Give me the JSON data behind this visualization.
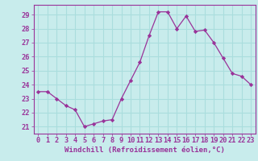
{
  "x": [
    0,
    1,
    2,
    3,
    4,
    5,
    6,
    7,
    8,
    9,
    10,
    11,
    12,
    13,
    14,
    15,
    16,
    17,
    18,
    19,
    20,
    21,
    22,
    23
  ],
  "y": [
    23.5,
    23.5,
    23.0,
    22.5,
    22.2,
    21.0,
    21.2,
    21.4,
    21.5,
    23.0,
    24.3,
    25.6,
    27.5,
    29.2,
    29.2,
    28.0,
    28.9,
    27.8,
    27.9,
    27.0,
    25.9,
    24.8,
    24.6,
    24.0
  ],
  "line_color": "#993399",
  "marker": "D",
  "marker_size": 2.2,
  "bg_color": "#c8ecec",
  "grid_color": "#aadddd",
  "xlabel": "Windchill (Refroidissement éolien,°C)",
  "ylabel_ticks": [
    21,
    22,
    23,
    24,
    25,
    26,
    27,
    28,
    29
  ],
  "xlim": [
    -0.5,
    23.5
  ],
  "ylim": [
    20.5,
    29.7
  ],
  "tick_color": "#993399",
  "label_color": "#993399",
  "xlabel_fontsize": 6.5,
  "tick_fontsize": 6.2,
  "spine_color": "#993399"
}
